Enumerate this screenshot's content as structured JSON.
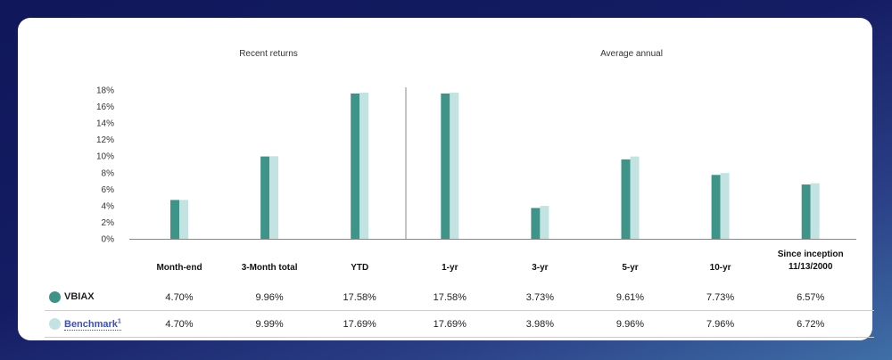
{
  "chart_data": {
    "type": "bar",
    "sections": [
      "Recent returns",
      "Average annual"
    ],
    "categories": [
      "Month-end",
      "3-Month total",
      "YTD",
      "1-yr",
      "3-yr",
      "5-yr",
      "10-yr",
      "Since inception 11/13/2000"
    ],
    "category_lines": [
      [
        "Month-end"
      ],
      [
        "3-Month total"
      ],
      [
        "YTD"
      ],
      [
        "1-yr"
      ],
      [
        "3-yr"
      ],
      [
        "5-yr"
      ],
      [
        "10-yr"
      ],
      [
        "Since inception",
        "11/13/2000"
      ]
    ],
    "series": [
      {
        "name": "VBIAX",
        "color": "#3f9489",
        "values": [
          4.7,
          9.96,
          17.58,
          17.58,
          3.73,
          9.61,
          7.73,
          6.57
        ],
        "labels": [
          "4.70%",
          "9.96%",
          "17.58%",
          "17.58%",
          "3.73%",
          "9.61%",
          "7.73%",
          "6.57%"
        ]
      },
      {
        "name": "Benchmark",
        "superscript": "1",
        "color": "#c2e3e2",
        "values": [
          4.7,
          9.99,
          17.69,
          17.69,
          3.98,
          9.96,
          7.96,
          6.72
        ],
        "labels": [
          "4.70%",
          "9.99%",
          "17.69%",
          "17.69%",
          "3.98%",
          "9.96%",
          "7.96%",
          "6.72%"
        ]
      }
    ],
    "yticks": [
      "0%",
      "2%",
      "4%",
      "6%",
      "8%",
      "10%",
      "12%",
      "14%",
      "16%",
      "18%"
    ],
    "ylim": [
      0,
      18
    ],
    "grid": false,
    "benchmark_link_color": "#3b4fc4"
  }
}
